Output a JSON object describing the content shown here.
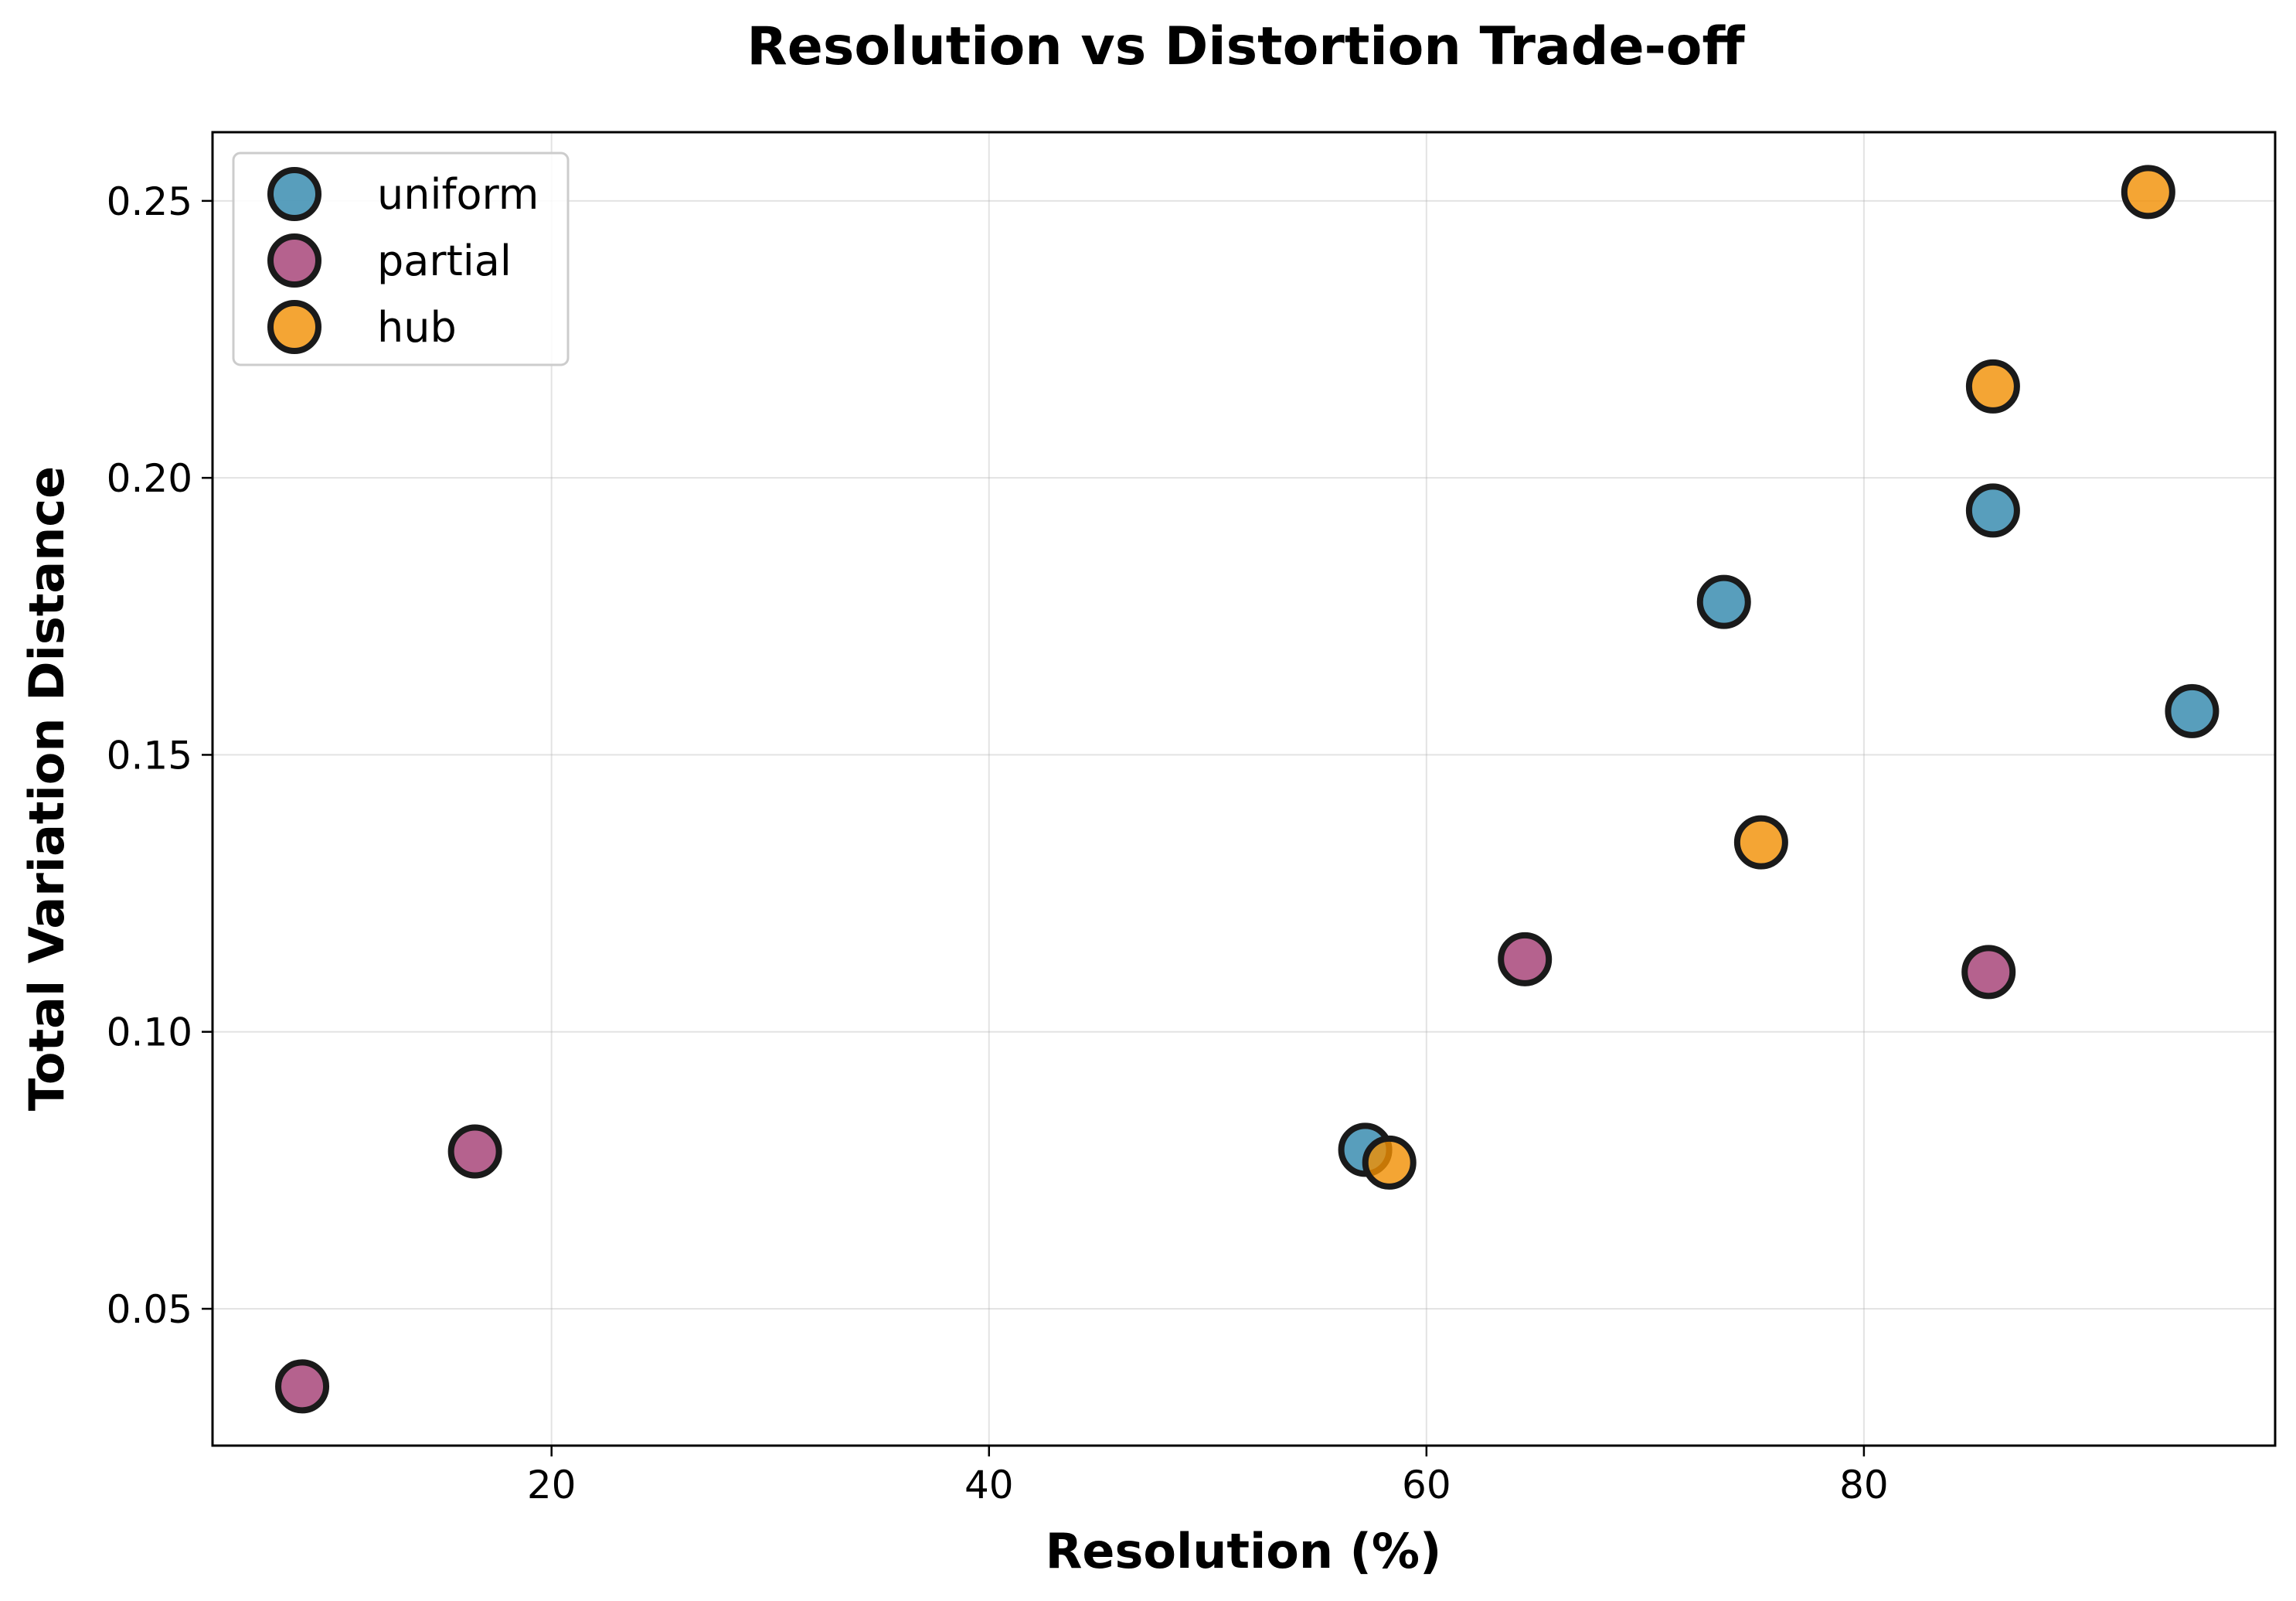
{
  "chart_data": {
    "type": "scatter",
    "title": "Resolution vs Distortion Trade-off",
    "xlabel": "Resolution (%)",
    "ylabel": "Total Variation Distance",
    "xlim": [
      4.5,
      98.8
    ],
    "ylim": [
      0.0253,
      0.2624
    ],
    "xticks": [
      20,
      40,
      60,
      80
    ],
    "xtick_labels": [
      "20",
      "40",
      "60",
      "80"
    ],
    "yticks": [
      0.05,
      0.1,
      0.15,
      0.2,
      0.25
    ],
    "ytick_labels": [
      "0.05",
      "0.10",
      "0.15",
      "0.20",
      "0.25"
    ],
    "grid": true,
    "legend_position": "top-left",
    "series": [
      {
        "name": "uniform",
        "color": "#2e86ab",
        "points": [
          [
            57.2,
            0.0787
          ],
          [
            73.6,
            0.1776
          ],
          [
            85.9,
            0.1941
          ],
          [
            95.0,
            0.1579
          ]
        ]
      },
      {
        "name": "partial",
        "color": "#a23b72",
        "points": [
          [
            8.6,
            0.036
          ],
          [
            16.5,
            0.0784
          ],
          [
            64.5,
            0.1131
          ],
          [
            85.7,
            0.1108
          ]
        ]
      },
      {
        "name": "hub",
        "color": "#f18f01",
        "points": [
          [
            58.3,
            0.0764
          ],
          [
            75.3,
            0.1342
          ],
          [
            85.9,
            0.2165
          ],
          [
            93.0,
            0.2516
          ]
        ]
      }
    ]
  }
}
